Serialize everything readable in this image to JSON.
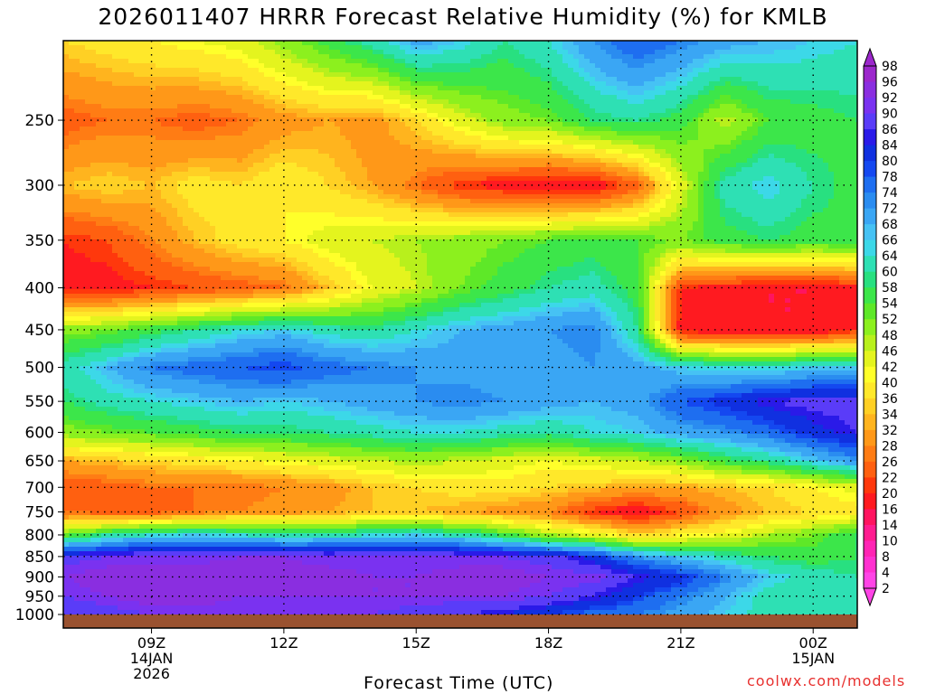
{
  "title": "2026011407 HRRR Forecast Relative Humidity (%) for KMLB",
  "watermark": "coolwx.com/models",
  "chart_data": {
    "type": "heatmap",
    "title": "2026011407 HRRR Forecast Relative Humidity (%) for KMLB",
    "xlabel": "Forecast Time (UTC)",
    "ylabel": "",
    "y_scale": "log-pressure (hPa), inverted",
    "x_ticks": [
      {
        "label": "09Z",
        "sub": [
          "14JAN",
          "2026"
        ]
      },
      {
        "label": "12Z",
        "sub": []
      },
      {
        "label": "15Z",
        "sub": []
      },
      {
        "label": "18Z",
        "sub": []
      },
      {
        "label": "21Z",
        "sub": []
      },
      {
        "label": "00Z",
        "sub": [
          "15JAN"
        ]
      }
    ],
    "x_hours": [
      9,
      12,
      15,
      18,
      21,
      24
    ],
    "xlim_hours": [
      7,
      25
    ],
    "y_ticks": [
      250,
      300,
      350,
      400,
      450,
      500,
      550,
      600,
      650,
      700,
      750,
      800,
      850,
      900,
      950,
      1000
    ],
    "ylim": [
      1000,
      200
    ],
    "grid": true,
    "colorbar_levels": [
      98,
      96,
      92,
      90,
      86,
      84,
      80,
      78,
      74,
      72,
      68,
      66,
      64,
      60,
      58,
      54,
      52,
      48,
      46,
      42,
      40,
      36,
      34,
      32,
      28,
      26,
      22,
      20,
      16,
      14,
      10,
      8,
      4,
      2
    ],
    "colorbar_colors": [
      "#9c27cc",
      "#8a2ee0",
      "#7a32f0",
      "#5a3cf8",
      "#2a1ae8",
      "#1030e0",
      "#1448f0",
      "#1e6ef0",
      "#2a8cf0",
      "#3aa6f4",
      "#46c2f4",
      "#3cd8e8",
      "#2ee0b4",
      "#28e080",
      "#3ce64a",
      "#5ee828",
      "#8cf01e",
      "#b8f01c",
      "#e4f41e",
      "#ffff2a",
      "#ffe82a",
      "#ffd024",
      "#ffb41e",
      "#ff9818",
      "#ff7c14",
      "#ff6010",
      "#ff380c",
      "#ff1a20",
      "#ff1460",
      "#ff1c90",
      "#ff24b4",
      "#ff30d0",
      "#ff44e6"
    ],
    "time_hours": [
      7,
      8,
      9,
      10,
      11,
      12,
      13,
      14,
      15,
      16,
      17,
      18,
      19,
      20,
      21,
      22,
      23,
      24,
      25
    ],
    "pressure_levels": [
      200,
      250,
      300,
      350,
      400,
      450,
      500,
      550,
      600,
      650,
      700,
      750,
      800,
      850,
      900,
      950,
      1000
    ],
    "rh_values": [
      [
        36,
        38,
        40,
        42,
        44,
        50,
        56,
        62,
        70,
        66,
        60,
        64,
        72,
        78,
        74,
        70,
        68,
        66,
        64
      ],
      [
        24,
        26,
        26,
        24,
        26,
        30,
        32,
        30,
        36,
        44,
        50,
        52,
        58,
        60,
        56,
        46,
        54,
        56,
        58
      ],
      [
        34,
        36,
        34,
        38,
        36,
        40,
        36,
        32,
        26,
        20,
        18,
        16,
        16,
        24,
        44,
        62,
        66,
        60,
        56
      ],
      [
        20,
        22,
        28,
        34,
        38,
        40,
        44,
        46,
        48,
        50,
        52,
        54,
        56,
        54,
        52,
        56,
        58,
        56,
        58
      ],
      [
        18,
        18,
        20,
        22,
        24,
        26,
        34,
        42,
        46,
        52,
        56,
        60,
        62,
        56,
        20,
        18,
        16,
        16,
        18
      ],
      [
        50,
        52,
        56,
        60,
        64,
        66,
        62,
        60,
        64,
        68,
        70,
        72,
        74,
        60,
        18,
        16,
        16,
        16,
        20
      ],
      [
        62,
        68,
        74,
        76,
        78,
        80,
        76,
        74,
        72,
        70,
        70,
        70,
        72,
        70,
        66,
        64,
        64,
        66,
        66
      ],
      [
        58,
        62,
        64,
        66,
        68,
        66,
        68,
        70,
        72,
        74,
        72,
        70,
        68,
        70,
        78,
        82,
        86,
        88,
        88
      ],
      [
        50,
        52,
        54,
        56,
        58,
        58,
        60,
        62,
        64,
        64,
        62,
        60,
        64,
        66,
        70,
        72,
        76,
        82,
        86
      ],
      [
        32,
        34,
        36,
        38,
        40,
        42,
        44,
        46,
        48,
        46,
        44,
        42,
        44,
        46,
        50,
        56,
        60,
        66,
        72
      ],
      [
        22,
        24,
        26,
        26,
        26,
        28,
        30,
        34,
        36,
        38,
        38,
        36,
        34,
        32,
        32,
        34,
        36,
        40,
        44
      ],
      [
        26,
        24,
        24,
        26,
        28,
        30,
        32,
        34,
        34,
        32,
        30,
        28,
        20,
        16,
        22,
        30,
        34,
        36,
        38
      ],
      [
        52,
        60,
        64,
        66,
        64,
        60,
        62,
        64,
        66,
        62,
        56,
        48,
        44,
        36,
        40,
        42,
        48,
        52,
        58
      ],
      [
        88,
        90,
        90,
        90,
        92,
        92,
        90,
        90,
        90,
        90,
        90,
        88,
        82,
        72,
        66,
        62,
        58,
        56,
        58
      ],
      [
        92,
        94,
        96,
        96,
        94,
        94,
        94,
        92,
        92,
        94,
        94,
        92,
        92,
        86,
        82,
        74,
        66,
        62,
        60
      ],
      [
        90,
        92,
        94,
        94,
        92,
        92,
        92,
        92,
        92,
        92,
        92,
        90,
        86,
        80,
        74,
        68,
        62,
        60,
        62
      ],
      [
        86,
        88,
        90,
        90,
        90,
        90,
        90,
        90,
        88,
        86,
        84,
        80,
        76,
        74,
        70,
        66,
        62,
        60,
        60
      ]
    ],
    "surface_color": "#9a5230"
  }
}
